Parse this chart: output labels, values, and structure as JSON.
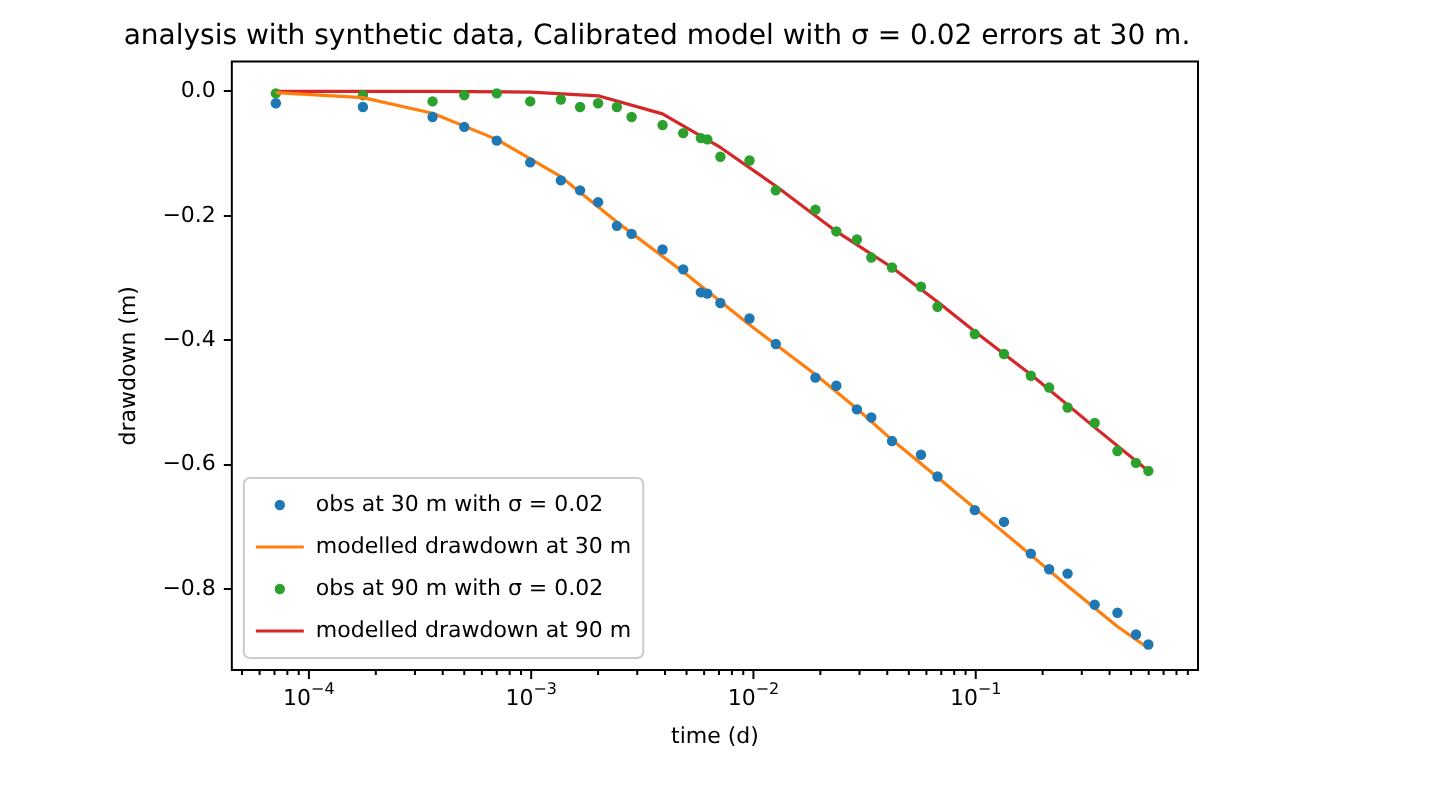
{
  "chart_data": {
    "type": "scatter",
    "title": "analysis with synthetic data, Calibrated model with σ = 0.02 errors at 30 m.",
    "xlabel": "time (d)",
    "ylabel": "drawdown (m)",
    "log": "x",
    "legend": "bottom left",
    "xlim": [
      4.5e-05,
      1.0
    ],
    "ylim": [
      -0.93,
      0.048
    ],
    "xticks": [
      {
        "value": 5e-05,
        "label": null
      },
      {
        "value": 6e-05,
        "label": null
      },
      {
        "value": 7e-05,
        "label": null
      },
      {
        "value": 8e-05,
        "label": null
      },
      {
        "value": 9e-05,
        "label": null
      },
      {
        "value": 0.0001,
        "label": "10$^{−4}$"
      },
      {
        "value": 0.0002,
        "label": null
      },
      {
        "value": 0.0003,
        "label": null
      },
      {
        "value": 0.0004,
        "label": null
      },
      {
        "value": 0.0005,
        "label": null
      },
      {
        "value": 0.0006,
        "label": null
      },
      {
        "value": 0.0007,
        "label": null
      },
      {
        "value": 0.0008,
        "label": null
      },
      {
        "value": 0.0009,
        "label": null
      },
      {
        "value": 0.001,
        "label": "10$^{−3}$"
      },
      {
        "value": 0.002,
        "label": null
      },
      {
        "value": 0.003,
        "label": null
      },
      {
        "value": 0.004,
        "label": null
      },
      {
        "value": 0.005,
        "label": null
      },
      {
        "value": 0.006,
        "label": null
      },
      {
        "value": 0.007,
        "label": null
      },
      {
        "value": 0.008,
        "label": null
      },
      {
        "value": 0.009,
        "label": null
      },
      {
        "value": 0.01,
        "label": "10$^{−2}$"
      },
      {
        "value": 0.02,
        "label": null
      },
      {
        "value": 0.03,
        "label": null
      },
      {
        "value": 0.04,
        "label": null
      },
      {
        "value": 0.05,
        "label": null
      },
      {
        "value": 0.06,
        "label": null
      },
      {
        "value": 0.07,
        "label": null
      },
      {
        "value": 0.08,
        "label": null
      },
      {
        "value": 0.09,
        "label": null
      },
      {
        "value": 0.1,
        "label": "10$^{−1}$"
      },
      {
        "value": 0.2,
        "label": null
      },
      {
        "value": 0.3,
        "label": null
      },
      {
        "value": 0.4,
        "label": null
      },
      {
        "value": 0.5,
        "label": null
      },
      {
        "value": 0.6,
        "label": null
      },
      {
        "value": 0.7,
        "label": null
      },
      {
        "value": 0.8,
        "label": null
      },
      {
        "value": 0.9,
        "label": null
      }
    ],
    "yticks": [
      {
        "value": 0,
        "label": "0.0"
      },
      {
        "value": -0.2,
        "label": "−0.2"
      },
      {
        "value": -0.4,
        "label": "−0.4"
      },
      {
        "value": -0.6,
        "label": "−0.6"
      },
      {
        "value": -0.8,
        "label": "−0.8"
      }
    ],
    "series": [
      {
        "name": "obs at 30 m with σ = 0.02",
        "marker": "circle",
        "color": "#1f77b4",
        "x": [
          7.1e-05,
          0.000175,
          0.00036,
          0.0005,
          0.0007,
          0.00099,
          0.00136,
          0.00166,
          0.002,
          0.00243,
          0.00283,
          0.0039,
          0.00483,
          0.0058,
          0.0062,
          0.0071,
          0.0096,
          0.0126,
          0.019,
          0.0236,
          0.0292,
          0.0339,
          0.042,
          0.0567,
          0.0673,
          0.099,
          0.134,
          0.177,
          0.214,
          0.259,
          0.343,
          0.434,
          0.526,
          0.598
        ],
        "values": [
          -0.019,
          -0.025,
          -0.041,
          -0.057,
          -0.079,
          -0.114,
          -0.143,
          -0.159,
          -0.178,
          -0.216,
          -0.229,
          -0.254,
          -0.286,
          -0.323,
          -0.325,
          -0.34,
          -0.365,
          -0.406,
          -0.46,
          -0.473,
          -0.511,
          -0.524,
          -0.562,
          -0.584,
          -0.619,
          -0.673,
          -0.692,
          -0.743,
          -0.768,
          -0.775,
          -0.825,
          -0.838,
          -0.873,
          -0.889
        ]
      },
      {
        "name": "modelled drawdown at 30 m",
        "type": "line",
        "marker": "none",
        "color": "#ff7f0e",
        "x": [
          7.1e-05,
          0.000175,
          0.00036,
          0.0007,
          0.00136,
          0.00243,
          0.00483,
          0.0096,
          0.019,
          0.0292,
          0.042,
          0.0673,
          0.099,
          0.177,
          0.259,
          0.434,
          0.598
        ],
        "values": [
          -0.002,
          -0.01,
          -0.035,
          -0.077,
          -0.137,
          -0.21,
          -0.29,
          -0.375,
          -0.455,
          -0.51,
          -0.56,
          -0.62,
          -0.67,
          -0.745,
          -0.795,
          -0.86,
          -0.895
        ]
      },
      {
        "name": "obs at 90 m with σ = 0.02",
        "marker": "circle",
        "color": "#2ca02c",
        "x": [
          7.1e-05,
          0.000175,
          0.00036,
          0.0005,
          0.0007,
          0.00099,
          0.00136,
          0.00166,
          0.002,
          0.00243,
          0.00283,
          0.0039,
          0.00483,
          0.0058,
          0.0062,
          0.0071,
          0.0096,
          0.0126,
          0.019,
          0.0236,
          0.0292,
          0.0339,
          0.042,
          0.0567,
          0.0673,
          0.099,
          0.134,
          0.177,
          0.214,
          0.259,
          0.343,
          0.434,
          0.526,
          0.598
        ],
        "values": [
          -0.003,
          -0.006,
          -0.016,
          -0.006,
          -0.003,
          -0.016,
          -0.013,
          -0.025,
          -0.019,
          -0.025,
          -0.041,
          -0.054,
          -0.067,
          -0.075,
          -0.077,
          -0.105,
          -0.111,
          -0.159,
          -0.19,
          -0.225,
          -0.238,
          -0.267,
          -0.283,
          -0.314,
          -0.346,
          -0.39,
          -0.422,
          -0.457,
          -0.476,
          -0.508,
          -0.533,
          -0.578,
          -0.597,
          -0.61
        ]
      },
      {
        "name": "modelled drawdown at 90 m",
        "type": "line",
        "marker": "none",
        "color": "#d62728",
        "x": [
          7.1e-05,
          0.00036,
          0.001,
          0.002,
          0.0039,
          0.0071,
          0.0126,
          0.0236,
          0.042,
          0.0673,
          0.099,
          0.177,
          0.343,
          0.598
        ],
        "values": [
          0,
          0,
          -0.001,
          -0.007,
          -0.036,
          -0.09,
          -0.152,
          -0.225,
          -0.283,
          -0.338,
          -0.386,
          -0.455,
          -0.54,
          -0.61
        ]
      }
    ]
  }
}
